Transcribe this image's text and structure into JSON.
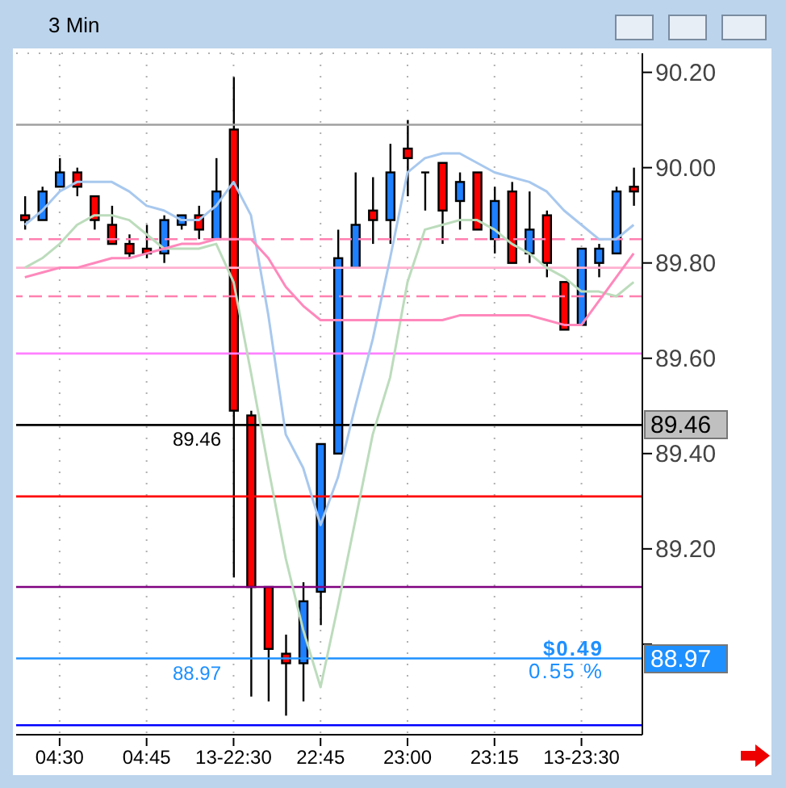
{
  "chart_data": {
    "type": "candlestick",
    "title": "3 Min",
    "categories": [
      null,
      null,
      "04:30",
      null,
      null,
      null,
      null,
      "04:45",
      null,
      null,
      null,
      null,
      "13-22:30",
      null,
      null,
      null,
      null,
      "22:45",
      null,
      null,
      null,
      null,
      "23:00",
      null,
      null,
      null,
      null,
      "23:15",
      null,
      null,
      null,
      null,
      "13-23:30",
      null,
      null,
      null
    ],
    "ohlc": [
      [
        89.9,
        89.94,
        89.87,
        89.89
      ],
      [
        89.89,
        89.96,
        89.89,
        89.95
      ],
      [
        89.96,
        90.02,
        89.96,
        89.99
      ],
      [
        89.99,
        90.0,
        89.94,
        89.96
      ],
      [
        89.94,
        89.94,
        89.87,
        89.89
      ],
      [
        89.88,
        89.92,
        89.84,
        89.84
      ],
      [
        89.84,
        89.86,
        89.81,
        89.82
      ],
      [
        89.83,
        89.88,
        89.81,
        89.82
      ],
      [
        89.82,
        89.9,
        89.8,
        89.89
      ],
      [
        89.88,
        89.9,
        89.87,
        89.9
      ],
      [
        89.9,
        89.92,
        89.85,
        89.87
      ],
      [
        89.85,
        90.02,
        89.85,
        89.95
      ],
      [
        90.08,
        90.19,
        89.14,
        89.49
      ],
      [
        89.48,
        89.49,
        88.89,
        89.12
      ],
      [
        89.12,
        89.12,
        88.88,
        88.99
      ],
      [
        88.98,
        89.02,
        88.85,
        88.96
      ],
      [
        88.96,
        89.13,
        88.88,
        89.09
      ],
      [
        89.11,
        89.42,
        89.04,
        89.42
      ],
      [
        89.4,
        89.87,
        89.4,
        89.81
      ],
      [
        89.79,
        89.99,
        89.79,
        89.88
      ],
      [
        89.91,
        89.98,
        89.84,
        89.89
      ],
      [
        89.89,
        90.05,
        89.84,
        89.99
      ],
      [
        90.04,
        90.1,
        89.94,
        90.02
      ],
      [
        89.99,
        89.99,
        89.91,
        89.99
      ],
      [
        90.01,
        90.01,
        89.84,
        89.91
      ],
      [
        89.93,
        89.99,
        89.87,
        89.97
      ],
      [
        89.99,
        89.99,
        89.87,
        89.87
      ],
      [
        89.85,
        89.96,
        89.82,
        89.93
      ],
      [
        89.95,
        89.97,
        89.8,
        89.8
      ],
      [
        89.82,
        89.95,
        89.8,
        89.87
      ],
      [
        89.9,
        89.91,
        89.77,
        89.8
      ],
      [
        89.76,
        89.76,
        89.66,
        89.66
      ],
      [
        89.67,
        89.83,
        89.67,
        89.83
      ],
      [
        89.8,
        89.84,
        89.77,
        89.83
      ],
      [
        89.82,
        89.96,
        89.82,
        89.95
      ],
      [
        89.96,
        90.0,
        89.92,
        89.95
      ]
    ],
    "colors": [
      "#ff0000",
      "#1e7fff",
      "#1e7fff",
      "#ff0000",
      "#ff0000",
      "#ff0000",
      "#ff0000",
      "#ff0000",
      "#1e7fff",
      "#1e7fff",
      "#ff0000",
      "#1e7fff",
      "#ff0000",
      "#ff0000",
      "#ff0000",
      "#ff0000",
      "#1e7fff",
      "#1e7fff",
      "#1e7fff",
      "#1e7fff",
      "#ff0000",
      "#1e7fff",
      "#ff0000",
      "#000000",
      "#ff0000",
      "#1e7fff",
      "#ff0000",
      "#1e7fff",
      "#ff0000",
      "#1e7fff",
      "#ff0000",
      "#ff0000",
      "#1e7fff",
      "#1e7fff",
      "#1e7fff",
      "#ff0000"
    ],
    "series": [
      {
        "type": "line",
        "color": "#a8c8ee",
        "values": [
          89.88,
          89.91,
          89.95,
          89.97,
          89.97,
          89.97,
          89.95,
          89.92,
          89.91,
          89.89,
          89.89,
          89.92,
          89.97,
          89.9,
          89.69,
          89.44,
          89.37,
          89.25,
          89.35,
          89.5,
          89.64,
          89.81,
          89.99,
          90.02,
          90.03,
          90.03,
          90.01,
          89.99,
          89.98,
          89.97,
          89.95,
          89.91,
          89.88,
          89.85,
          89.85,
          89.88
        ]
      },
      {
        "type": "line",
        "color": "#bcdcbc",
        "values": [
          89.79,
          89.81,
          89.84,
          89.88,
          89.9,
          89.9,
          89.89,
          89.86,
          89.83,
          89.83,
          89.83,
          89.84,
          89.76,
          89.57,
          89.37,
          89.18,
          89.03,
          88.91,
          89.08,
          89.26,
          89.44,
          89.56,
          89.76,
          89.87,
          89.88,
          89.89,
          89.89,
          89.87,
          89.84,
          89.82,
          89.79,
          89.77,
          89.74,
          89.74,
          89.73,
          89.76
        ]
      },
      {
        "type": "line",
        "color": "#ff88bb",
        "values": [
          89.77,
          89.78,
          89.79,
          89.79,
          89.8,
          89.81,
          89.81,
          89.82,
          89.83,
          89.84,
          89.84,
          89.85,
          89.85,
          89.85,
          89.81,
          89.75,
          89.71,
          89.68,
          89.68,
          89.68,
          89.68,
          89.68,
          89.68,
          89.68,
          89.68,
          89.69,
          89.69,
          89.69,
          89.69,
          89.69,
          89.68,
          89.67,
          89.67,
          89.72,
          89.77,
          89.82
        ]
      }
    ],
    "ylim": [
      88.81,
      90.24
    ],
    "yticks": [
      {
        "value": 89.0,
        "label": null
      },
      {
        "value": 89.2,
        "label": "89.20"
      },
      {
        "value": 89.4,
        "label": "89.40"
      },
      {
        "value": 89.6,
        "label": "89.60"
      },
      {
        "value": 89.8,
        "label": "89.80"
      },
      {
        "value": 90.0,
        "label": "90.00"
      },
      {
        "value": 90.2,
        "label": "90.20"
      }
    ],
    "ref_lines": [
      {
        "axis": "y",
        "value": 90.09,
        "color": "#a0a0a0"
      },
      {
        "axis": "y",
        "value": 89.85,
        "color": "#ff80b0",
        "line_style": "dashed"
      },
      {
        "axis": "y",
        "value": 89.79,
        "color": "#ffb0d0"
      },
      {
        "axis": "y",
        "value": 89.73,
        "color": "#ff80b0",
        "line_style": "dashed"
      },
      {
        "axis": "y",
        "value": 89.61,
        "color": "#ff80ff"
      },
      {
        "axis": "y",
        "value": 89.46,
        "label": "89.46",
        "color": "#000000"
      },
      {
        "axis": "y",
        "value": 89.31,
        "color": "#ff0000"
      },
      {
        "axis": "y",
        "value": 89.12,
        "color": "#800080"
      },
      {
        "axis": "y",
        "value": 88.97,
        "label": "88.97",
        "color": "#1e90ff"
      },
      {
        "axis": "y",
        "value": 88.83,
        "color": "#0000ff"
      }
    ],
    "annotations": [
      "$0.49",
      "0.55 %"
    ],
    "grid": true,
    "marker": "none",
    "line_style": "solid"
  }
}
